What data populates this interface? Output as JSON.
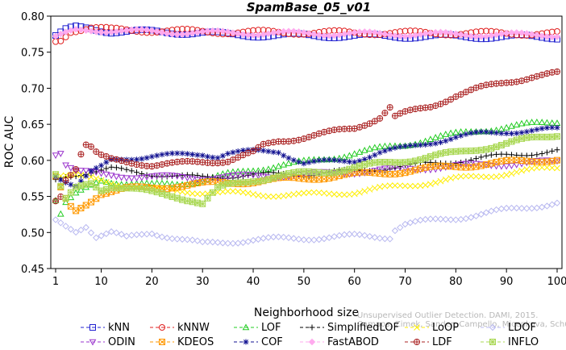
{
  "chart_data": {
    "type": "line",
    "title": "SpamBase_05_v01",
    "xlabel": "Neighborhood size",
    "ylabel": "ROC AUC",
    "xlim": [
      0,
      100
    ],
    "ylim": [
      0.45,
      0.8
    ],
    "xticks": [
      1,
      10,
      20,
      30,
      40,
      50,
      60,
      70,
      80,
      90,
      100
    ],
    "yticks": [
      0.45,
      0.5,
      0.55,
      0.6,
      0.65,
      0.7,
      0.75,
      0.8
    ],
    "watermark": [
      "Unsupervised Outlier Detection. DAMI, 2015.",
      "Campos, Zimek, Sander, Campello, Micenkova, Schubert, Assent, Houle"
    ],
    "legend_position": "bottom",
    "series": [
      {
        "name": "kNN",
        "color": "#2020d0",
        "marker": "square",
        "points": [
          [
            1,
            0.772
          ],
          [
            3,
            0.78
          ],
          [
            5,
            0.784
          ],
          [
            8,
            0.783
          ],
          [
            12,
            0.779
          ],
          [
            20,
            0.778
          ],
          [
            30,
            0.777
          ],
          [
            35,
            0.774
          ],
          [
            50,
            0.773
          ],
          [
            70,
            0.772
          ],
          [
            100,
            0.771
          ]
        ]
      },
      {
        "name": "kNNW",
        "color": "#e02020",
        "marker": "circle",
        "points": [
          [
            1,
            0.765
          ],
          [
            2,
            0.767
          ],
          [
            4,
            0.78
          ],
          [
            8,
            0.784
          ],
          [
            12,
            0.781
          ],
          [
            20,
            0.78
          ],
          [
            35,
            0.778
          ],
          [
            60,
            0.777
          ],
          [
            100,
            0.776
          ]
        ]
      },
      {
        "name": "LOF",
        "color": "#22cc22",
        "marker": "triangle",
        "points": [
          [
            1,
            0.545
          ],
          [
            2,
            0.525
          ],
          [
            3,
            0.54
          ],
          [
            5,
            0.552
          ],
          [
            8,
            0.565
          ],
          [
            10,
            0.573
          ],
          [
            15,
            0.568
          ],
          [
            20,
            0.565
          ],
          [
            25,
            0.568
          ],
          [
            30,
            0.572
          ],
          [
            35,
            0.58
          ],
          [
            40,
            0.587
          ],
          [
            45,
            0.593
          ],
          [
            50,
            0.597
          ],
          [
            55,
            0.603
          ],
          [
            60,
            0.61
          ],
          [
            65,
            0.616
          ],
          [
            70,
            0.622
          ],
          [
            75,
            0.63
          ],
          [
            80,
            0.636
          ],
          [
            85,
            0.642
          ],
          [
            90,
            0.646
          ],
          [
            95,
            0.65
          ],
          [
            100,
            0.654
          ]
        ]
      },
      {
        "name": "SimplifiedLOF",
        "color": "#000000",
        "marker": "plus",
        "points": [
          [
            1,
            0.572
          ],
          [
            3,
            0.578
          ],
          [
            6,
            0.582
          ],
          [
            10,
            0.586
          ],
          [
            12,
            0.588
          ],
          [
            15,
            0.585
          ],
          [
            20,
            0.581
          ],
          [
            25,
            0.578
          ],
          [
            30,
            0.576
          ],
          [
            35,
            0.578
          ],
          [
            40,
            0.58
          ],
          [
            50,
            0.581
          ],
          [
            60,
            0.585
          ],
          [
            70,
            0.592
          ],
          [
            80,
            0.599
          ],
          [
            90,
            0.607
          ],
          [
            100,
            0.613
          ]
        ]
      },
      {
        "name": "LoOP",
        "color": "#ffee00",
        "marker": "x",
        "points": [
          [
            1,
            0.58
          ],
          [
            5,
            0.578
          ],
          [
            10,
            0.572
          ],
          [
            15,
            0.565
          ],
          [
            20,
            0.56
          ],
          [
            30,
            0.556
          ],
          [
            40,
            0.553
          ],
          [
            50,
            0.552
          ],
          [
            60,
            0.556
          ],
          [
            70,
            0.565
          ],
          [
            80,
            0.574
          ],
          [
            90,
            0.582
          ],
          [
            100,
            0.59
          ]
        ]
      },
      {
        "name": "LDOF",
        "color": "#b8b8f0",
        "marker": "diamond",
        "points": [
          [
            1,
            0.515
          ],
          [
            3,
            0.508
          ],
          [
            5,
            0.502
          ],
          [
            7,
            0.51
          ],
          [
            9,
            0.495
          ],
          [
            12,
            0.5
          ],
          [
            15,
            0.492
          ],
          [
            20,
            0.5
          ],
          [
            25,
            0.492
          ],
          [
            30,
            0.484
          ],
          [
            35,
            0.487
          ],
          [
            40,
            0.49
          ],
          [
            50,
            0.492
          ],
          [
            60,
            0.495
          ],
          [
            67,
            0.494
          ],
          [
            68,
            0.505
          ],
          [
            70,
            0.512
          ],
          [
            80,
            0.52
          ],
          [
            90,
            0.531
          ],
          [
            100,
            0.541
          ]
        ]
      },
      {
        "name": "ODIN",
        "color": "#9933cc",
        "marker": "triangle-down",
        "points": [
          [
            1,
            0.61
          ],
          [
            2,
            0.612
          ],
          [
            3,
            0.595
          ],
          [
            5,
            0.585
          ],
          [
            10,
            0.58
          ],
          [
            20,
            0.577
          ],
          [
            30,
            0.576
          ],
          [
            40,
            0.578
          ],
          [
            50,
            0.58
          ],
          [
            60,
            0.584
          ],
          [
            70,
            0.588
          ],
          [
            80,
            0.592
          ],
          [
            90,
            0.595
          ],
          [
            100,
            0.598
          ]
        ]
      },
      {
        "name": "KDEOS",
        "color": "#ff9900",
        "marker": "square-x",
        "points": [
          [
            1,
            0.575
          ],
          [
            3,
            0.545
          ],
          [
            4,
            0.535
          ],
          [
            5,
            0.53
          ],
          [
            8,
            0.545
          ],
          [
            10,
            0.555
          ],
          [
            15,
            0.56
          ],
          [
            20,
            0.562
          ],
          [
            25,
            0.565
          ],
          [
            30,
            0.567
          ],
          [
            40,
            0.571
          ],
          [
            50,
            0.575
          ],
          [
            60,
            0.58
          ],
          [
            70,
            0.585
          ],
          [
            80,
            0.592
          ],
          [
            90,
            0.597
          ],
          [
            100,
            0.602
          ]
        ]
      },
      {
        "name": "COF",
        "color": "#101090",
        "marker": "asterisk",
        "points": [
          [
            1,
            0.58
          ],
          [
            3,
            0.572
          ],
          [
            5,
            0.565
          ],
          [
            8,
            0.583
          ],
          [
            10,
            0.59
          ],
          [
            12,
            0.6
          ],
          [
            15,
            0.603
          ],
          [
            20,
            0.606
          ],
          [
            25,
            0.607
          ],
          [
            30,
            0.609
          ],
          [
            33,
            0.606
          ],
          [
            35,
            0.61
          ],
          [
            40,
            0.612
          ],
          [
            45,
            0.613
          ],
          [
            50,
            0.596
          ],
          [
            55,
            0.598
          ],
          [
            60,
            0.6
          ],
          [
            65,
            0.611
          ],
          [
            70,
            0.617
          ],
          [
            75,
            0.625
          ],
          [
            80,
            0.632
          ],
          [
            85,
            0.637
          ],
          [
            90,
            0.64
          ],
          [
            95,
            0.641
          ],
          [
            100,
            0.643
          ]
        ]
      },
      {
        "name": "FastABOD",
        "color": "#ffaaee",
        "marker": "diamond-filled",
        "points": [
          [
            1,
            0.77
          ],
          [
            3,
            0.775
          ],
          [
            5,
            0.78
          ],
          [
            8,
            0.781
          ],
          [
            15,
            0.779
          ],
          [
            30,
            0.777
          ],
          [
            50,
            0.776
          ],
          [
            70,
            0.775
          ],
          [
            100,
            0.774
          ]
        ]
      },
      {
        "name": "LDF",
        "color": "#aa2222",
        "marker": "circle-plus",
        "points": [
          [
            1,
            0.545
          ],
          [
            2,
            0.552
          ],
          [
            3,
            0.575
          ],
          [
            5,
            0.59
          ],
          [
            6,
            0.61
          ],
          [
            7,
            0.622
          ],
          [
            8,
            0.618
          ],
          [
            9,
            0.61
          ],
          [
            10,
            0.605
          ],
          [
            12,
            0.6
          ],
          [
            15,
            0.598
          ],
          [
            18,
            0.596
          ],
          [
            20,
            0.594
          ],
          [
            25,
            0.595
          ],
          [
            30,
            0.598
          ],
          [
            35,
            0.6
          ],
          [
            40,
            0.61
          ],
          [
            42,
            0.62
          ],
          [
            45,
            0.627
          ],
          [
            50,
            0.632
          ],
          [
            55,
            0.638
          ],
          [
            60,
            0.645
          ],
          [
            65,
            0.66
          ],
          [
            67,
            0.673
          ],
          [
            68,
            0.66
          ],
          [
            70,
            0.665
          ],
          [
            75,
            0.675
          ],
          [
            80,
            0.69
          ],
          [
            85,
            0.7
          ],
          [
            90,
            0.709
          ],
          [
            95,
            0.716
          ],
          [
            100,
            0.72
          ]
        ]
      },
      {
        "name": "INFLO",
        "color": "#aad855",
        "marker": "square-asterisk",
        "points": [
          [
            1,
            0.58
          ],
          [
            3,
            0.545
          ],
          [
            5,
            0.56
          ],
          [
            8,
            0.568
          ],
          [
            10,
            0.56
          ],
          [
            12,
            0.565
          ],
          [
            15,
            0.562
          ],
          [
            20,
            0.555
          ],
          [
            25,
            0.55
          ],
          [
            28,
            0.545
          ],
          [
            30,
            0.54
          ],
          [
            33,
            0.56
          ],
          [
            35,
            0.565
          ],
          [
            40,
            0.573
          ],
          [
            45,
            0.578
          ],
          [
            50,
            0.582
          ],
          [
            55,
            0.585
          ],
          [
            60,
            0.59
          ],
          [
            65,
            0.595
          ],
          [
            70,
            0.6
          ],
          [
            75,
            0.605
          ],
          [
            80,
            0.61
          ],
          [
            85,
            0.617
          ],
          [
            90,
            0.623
          ],
          [
            95,
            0.63
          ],
          [
            100,
            0.636
          ]
        ]
      }
    ]
  }
}
